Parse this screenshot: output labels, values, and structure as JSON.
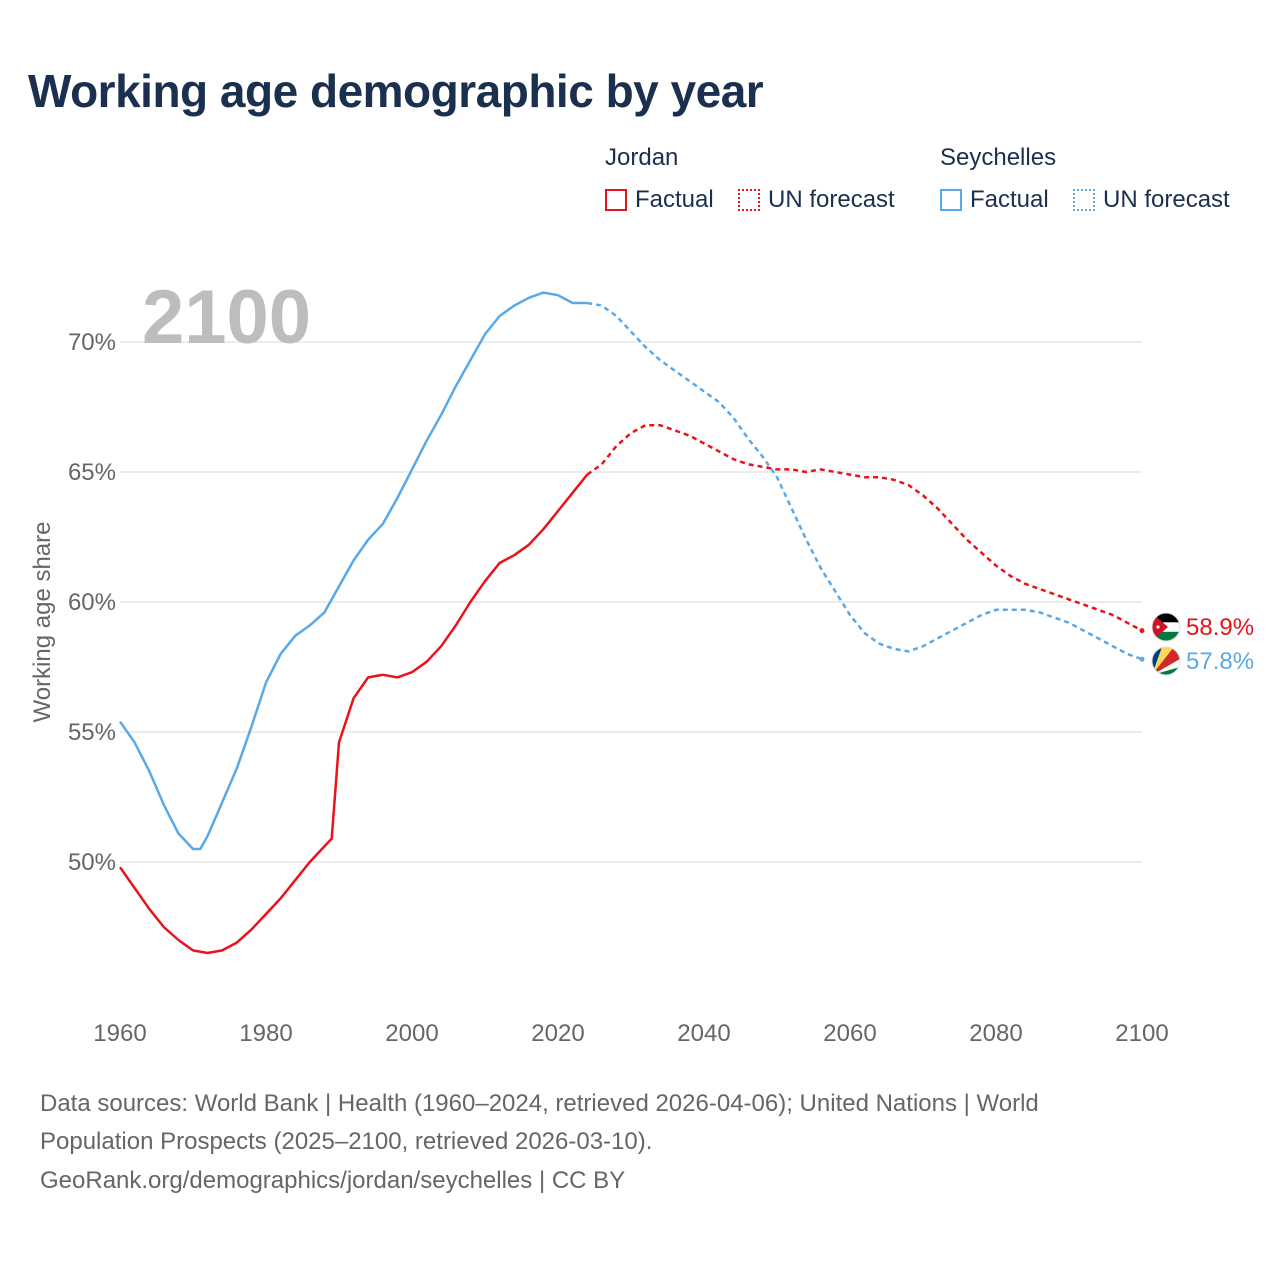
{
  "title": "Working age demographic by year",
  "legend": {
    "groups": [
      {
        "name": "Jordan",
        "factual_label": "Factual",
        "forecast_label": "UN forecast",
        "color": "#e8131b"
      },
      {
        "name": "Seychelles",
        "factual_label": "Factual",
        "forecast_label": "UN forecast",
        "color": "#5aa9e6"
      }
    ]
  },
  "year_label": "2100",
  "source": {
    "line1": "Data sources: World Bank | Health (1960–2024, retrieved 2026-04-06); United Nations | World",
    "line2": "Population Prospects (2025–2100, retrieved 2026-03-10).",
    "line3": "GeoRank.org/demographics/jordan/seychelles | CC BY"
  },
  "chart_data": {
    "type": "line",
    "title": "Working age demographic by year",
    "xlabel": "",
    "ylabel": "Working age share",
    "xlim": [
      1960,
      2100
    ],
    "ylim": [
      45,
      72
    ],
    "x_ticks": [
      1960,
      1980,
      2000,
      2020,
      2040,
      2060,
      2080,
      2100
    ],
    "x_tick_labels": [
      "1960",
      "1980",
      "2000",
      "2020",
      "2040",
      "2060",
      "2080",
      "2100"
    ],
    "y_ticks": [
      50,
      55,
      60,
      65,
      70
    ],
    "y_tick_labels": [
      "50%",
      "55%",
      "60%",
      "65%",
      "70%"
    ],
    "grid": true,
    "forecast_start": 2024,
    "series": [
      {
        "name": "Jordan",
        "color": "#e8131b",
        "end_label": "58.9%",
        "points": [
          [
            1960,
            49.8
          ],
          [
            1962,
            49.0
          ],
          [
            1964,
            48.2
          ],
          [
            1966,
            47.5
          ],
          [
            1968,
            47.0
          ],
          [
            1970,
            46.6
          ],
          [
            1972,
            46.5
          ],
          [
            1974,
            46.6
          ],
          [
            1976,
            46.9
          ],
          [
            1978,
            47.4
          ],
          [
            1980,
            48.0
          ],
          [
            1982,
            48.6
          ],
          [
            1984,
            49.3
          ],
          [
            1986,
            50.0
          ],
          [
            1988,
            50.6
          ],
          [
            1989,
            50.9
          ],
          [
            1990,
            54.6
          ],
          [
            1992,
            56.3
          ],
          [
            1994,
            57.1
          ],
          [
            1996,
            57.2
          ],
          [
            1998,
            57.1
          ],
          [
            2000,
            57.3
          ],
          [
            2002,
            57.7
          ],
          [
            2004,
            58.3
          ],
          [
            2006,
            59.1
          ],
          [
            2008,
            60.0
          ],
          [
            2010,
            60.8
          ],
          [
            2012,
            61.5
          ],
          [
            2014,
            61.8
          ],
          [
            2016,
            62.2
          ],
          [
            2018,
            62.8
          ],
          [
            2020,
            63.5
          ],
          [
            2022,
            64.2
          ],
          [
            2024,
            64.9
          ],
          [
            2026,
            65.3
          ],
          [
            2028,
            66.0
          ],
          [
            2030,
            66.5
          ],
          [
            2032,
            66.8
          ],
          [
            2034,
            66.8
          ],
          [
            2036,
            66.6
          ],
          [
            2038,
            66.4
          ],
          [
            2040,
            66.1
          ],
          [
            2042,
            65.8
          ],
          [
            2044,
            65.5
          ],
          [
            2046,
            65.3
          ],
          [
            2048,
            65.2
          ],
          [
            2050,
            65.1
          ],
          [
            2052,
            65.1
          ],
          [
            2054,
            65.0
          ],
          [
            2056,
            65.1
          ],
          [
            2058,
            65.0
          ],
          [
            2060,
            64.9
          ],
          [
            2062,
            64.8
          ],
          [
            2064,
            64.8
          ],
          [
            2066,
            64.7
          ],
          [
            2068,
            64.5
          ],
          [
            2070,
            64.1
          ],
          [
            2072,
            63.6
          ],
          [
            2074,
            63.0
          ],
          [
            2076,
            62.4
          ],
          [
            2078,
            61.9
          ],
          [
            2080,
            61.4
          ],
          [
            2082,
            61.0
          ],
          [
            2084,
            60.7
          ],
          [
            2086,
            60.5
          ],
          [
            2088,
            60.3
          ],
          [
            2090,
            60.1
          ],
          [
            2092,
            59.9
          ],
          [
            2094,
            59.7
          ],
          [
            2096,
            59.5
          ],
          [
            2098,
            59.2
          ],
          [
            2100,
            58.9
          ]
        ]
      },
      {
        "name": "Seychelles",
        "color": "#5aa9e6",
        "end_label": "57.8%",
        "points": [
          [
            1960,
            55.4
          ],
          [
            1962,
            54.6
          ],
          [
            1964,
            53.5
          ],
          [
            1966,
            52.2
          ],
          [
            1968,
            51.1
          ],
          [
            1970,
            50.5
          ],
          [
            1971,
            50.5
          ],
          [
            1972,
            51.0
          ],
          [
            1974,
            52.3
          ],
          [
            1976,
            53.6
          ],
          [
            1978,
            55.2
          ],
          [
            1980,
            56.9
          ],
          [
            1982,
            58.0
          ],
          [
            1984,
            58.7
          ],
          [
            1986,
            59.1
          ],
          [
            1988,
            59.6
          ],
          [
            1990,
            60.6
          ],
          [
            1992,
            61.6
          ],
          [
            1994,
            62.4
          ],
          [
            1996,
            63.0
          ],
          [
            1998,
            64.0
          ],
          [
            2000,
            65.1
          ],
          [
            2002,
            66.2
          ],
          [
            2004,
            67.2
          ],
          [
            2006,
            68.3
          ],
          [
            2008,
            69.3
          ],
          [
            2010,
            70.3
          ],
          [
            2012,
            71.0
          ],
          [
            2014,
            71.4
          ],
          [
            2016,
            71.7
          ],
          [
            2018,
            71.9
          ],
          [
            2020,
            71.8
          ],
          [
            2022,
            71.5
          ],
          [
            2024,
            71.5
          ],
          [
            2026,
            71.4
          ],
          [
            2028,
            71.0
          ],
          [
            2030,
            70.4
          ],
          [
            2032,
            69.8
          ],
          [
            2034,
            69.3
          ],
          [
            2036,
            68.9
          ],
          [
            2038,
            68.5
          ],
          [
            2040,
            68.1
          ],
          [
            2042,
            67.7
          ],
          [
            2044,
            67.1
          ],
          [
            2046,
            66.3
          ],
          [
            2048,
            65.6
          ],
          [
            2050,
            64.8
          ],
          [
            2052,
            63.6
          ],
          [
            2054,
            62.4
          ],
          [
            2056,
            61.3
          ],
          [
            2058,
            60.4
          ],
          [
            2060,
            59.5
          ],
          [
            2062,
            58.8
          ],
          [
            2064,
            58.4
          ],
          [
            2066,
            58.2
          ],
          [
            2068,
            58.1
          ],
          [
            2070,
            58.3
          ],
          [
            2072,
            58.6
          ],
          [
            2074,
            58.9
          ],
          [
            2076,
            59.2
          ],
          [
            2078,
            59.5
          ],
          [
            2080,
            59.7
          ],
          [
            2082,
            59.7
          ],
          [
            2084,
            59.7
          ],
          [
            2086,
            59.6
          ],
          [
            2088,
            59.4
          ],
          [
            2090,
            59.2
          ],
          [
            2092,
            58.9
          ],
          [
            2094,
            58.6
          ],
          [
            2096,
            58.3
          ],
          [
            2098,
            58.0
          ],
          [
            2100,
            57.8
          ]
        ]
      }
    ]
  }
}
